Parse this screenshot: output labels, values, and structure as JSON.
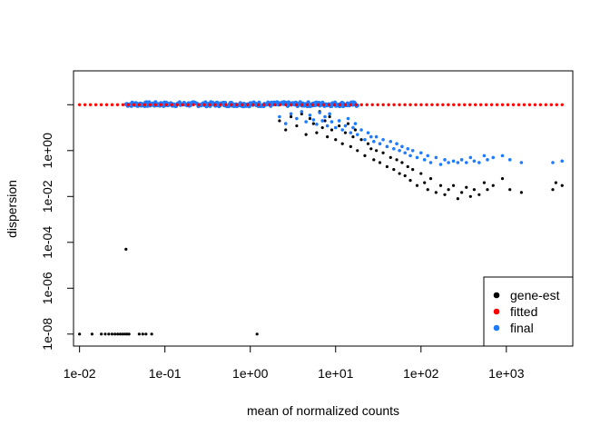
{
  "chart_data": {
    "type": "scatter",
    "title": "",
    "xlabel": "mean of normalized counts",
    "ylabel": "dispersion",
    "x_scale": "log",
    "y_scale": "log",
    "xlim": [
      0.0085,
      6000
    ],
    "ylim": [
      3e-09,
      3000
    ],
    "x_ticks": [
      "1e-02",
      "1e-01",
      "1e+00",
      "1e+01",
      "1e+02",
      "1e+03"
    ],
    "x_tick_values": [
      0.01,
      0.1,
      1,
      10,
      100,
      1000
    ],
    "y_ticks": [
      "1e-08",
      "1e-06",
      "1e-04",
      "1e-02",
      "1e+00"
    ],
    "y_tick_values": [
      1e-08,
      1e-06,
      0.0001,
      0.01,
      1
    ],
    "grid": false,
    "legend_position": "bottom-right",
    "series": [
      {
        "name": "gene-est",
        "color": "#000000",
        "points": [
          [
            0.01,
            1e-08
          ],
          [
            0.014,
            1e-08
          ],
          [
            0.018,
            1e-08
          ],
          [
            0.02,
            1e-08
          ],
          [
            0.022,
            1e-08
          ],
          [
            0.024,
            1e-08
          ],
          [
            0.026,
            1e-08
          ],
          [
            0.028,
            1e-08
          ],
          [
            0.03,
            1e-08
          ],
          [
            0.032,
            1e-08
          ],
          [
            0.034,
            1e-08
          ],
          [
            0.036,
            1e-08
          ],
          [
            0.038,
            1e-08
          ],
          [
            0.05,
            1e-08
          ],
          [
            0.055,
            1e-08
          ],
          [
            0.06,
            1e-08
          ],
          [
            0.07,
            1e-08
          ],
          [
            1.2,
            1e-08
          ],
          [
            0.035,
            5e-05
          ],
          [
            2.2,
            20
          ],
          [
            2.6,
            8
          ],
          [
            3.0,
            30
          ],
          [
            3.5,
            12
          ],
          [
            4.0,
            40
          ],
          [
            4.5,
            5
          ],
          [
            5.0,
            25
          ],
          [
            5.5,
            15
          ],
          [
            6.0,
            6
          ],
          [
            6.5,
            50
          ],
          [
            7.0,
            10
          ],
          [
            7.5,
            20
          ],
          [
            8.0,
            4
          ],
          [
            8.5,
            30
          ],
          [
            9.0,
            8
          ],
          [
            10,
            3
          ],
          [
            11,
            12
          ],
          [
            12,
            2
          ],
          [
            13,
            6
          ],
          [
            14,
            15
          ],
          [
            15,
            1.5
          ],
          [
            16,
            4
          ],
          [
            17,
            8
          ],
          [
            18,
            1
          ],
          [
            20,
            3
          ],
          [
            22,
            0.6
          ],
          [
            24,
            2
          ],
          [
            26,
            1.2
          ],
          [
            28,
            0.4
          ],
          [
            30,
            1
          ],
          [
            33,
            0.3
          ],
          [
            36,
            0.8
          ],
          [
            40,
            0.2
          ],
          [
            44,
            0.5
          ],
          [
            48,
            0.15
          ],
          [
            52,
            0.4
          ],
          [
            56,
            0.1
          ],
          [
            60,
            0.3
          ],
          [
            65,
            0.08
          ],
          [
            70,
            0.2
          ],
          [
            75,
            0.05
          ],
          [
            80,
            0.15
          ],
          [
            90,
            0.03
          ],
          [
            100,
            0.1
          ],
          [
            110,
            0.04
          ],
          [
            120,
            0.02
          ],
          [
            130,
            0.06
          ],
          [
            150,
            0.015
          ],
          [
            170,
            0.03
          ],
          [
            190,
            0.012
          ],
          [
            210,
            0.02
          ],
          [
            240,
            0.03
          ],
          [
            270,
            0.008
          ],
          [
            300,
            0.015
          ],
          [
            340,
            0.025
          ],
          [
            380,
            0.01
          ],
          [
            420,
            0.02
          ],
          [
            480,
            0.012
          ],
          [
            550,
            0.04
          ],
          [
            600,
            0.02
          ],
          [
            700,
            0.03
          ],
          [
            900,
            0.06
          ],
          [
            1100,
            0.02
          ],
          [
            1500,
            0.015
          ],
          [
            3500,
            0.02
          ],
          [
            3800,
            0.04
          ],
          [
            4500,
            0.03
          ]
        ]
      },
      {
        "name": "fitted",
        "color": "#ff0000",
        "line": {
          "x_from": 0.01,
          "x_to": 4500,
          "y": 100
        }
      },
      {
        "name": "final",
        "color": "#1e7bff",
        "band": {
          "x_from": 0.035,
          "x_to": 18,
          "y_from": 85,
          "y_to": 130
        },
        "points": [
          [
            2.2,
            30
          ],
          [
            2.6,
            15
          ],
          [
            3.0,
            40
          ],
          [
            3.5,
            25
          ],
          [
            4.0,
            50
          ],
          [
            4.5,
            18
          ],
          [
            5.0,
            35
          ],
          [
            5.5,
            22
          ],
          [
            6.0,
            14
          ],
          [
            6.5,
            45
          ],
          [
            7.0,
            20
          ],
          [
            7.5,
            30
          ],
          [
            8.0,
            12
          ],
          [
            8.5,
            40
          ],
          [
            9.0,
            18
          ],
          [
            10,
            10
          ],
          [
            11,
            20
          ],
          [
            12,
            8
          ],
          [
            13,
            12
          ],
          [
            14,
            25
          ],
          [
            15,
            6
          ],
          [
            16,
            10
          ],
          [
            17,
            15
          ],
          [
            18,
            5
          ],
          [
            20,
            8
          ],
          [
            22,
            3
          ],
          [
            24,
            6
          ],
          [
            26,
            4
          ],
          [
            28,
            2.5
          ],
          [
            30,
            4
          ],
          [
            33,
            2
          ],
          [
            36,
            3
          ],
          [
            40,
            1.5
          ],
          [
            44,
            2.5
          ],
          [
            48,
            1.2
          ],
          [
            52,
            2
          ],
          [
            56,
            1
          ],
          [
            60,
            1.5
          ],
          [
            65,
            0.8
          ],
          [
            70,
            1.2
          ],
          [
            75,
            0.6
          ],
          [
            80,
            1
          ],
          [
            90,
            0.5
          ],
          [
            100,
            0.8
          ],
          [
            110,
            0.4
          ],
          [
            120,
            0.6
          ],
          [
            130,
            0.3
          ],
          [
            150,
            0.5
          ],
          [
            170,
            0.25
          ],
          [
            190,
            0.4
          ],
          [
            210,
            0.3
          ],
          [
            240,
            0.35
          ],
          [
            270,
            0.3
          ],
          [
            300,
            0.4
          ],
          [
            340,
            0.3
          ],
          [
            380,
            0.5
          ],
          [
            420,
            0.35
          ],
          [
            480,
            0.3
          ],
          [
            550,
            0.6
          ],
          [
            600,
            0.4
          ],
          [
            700,
            0.5
          ],
          [
            900,
            0.6
          ],
          [
            1100,
            0.4
          ],
          [
            1500,
            0.3
          ],
          [
            3500,
            0.3
          ],
          [
            4500,
            0.35
          ]
        ]
      }
    ]
  }
}
